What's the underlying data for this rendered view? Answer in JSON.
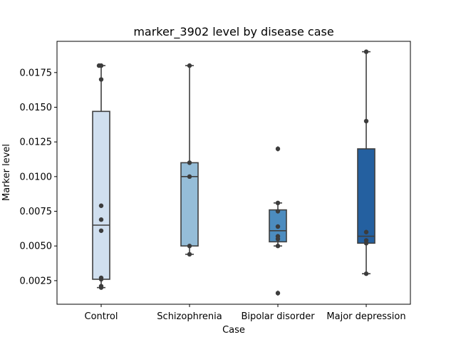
{
  "chart_data": {
    "type": "box",
    "title": "marker_3902 level by disease case",
    "xlabel": "Case",
    "ylabel": "Marker level",
    "ylim": [
      0.0008,
      0.01975
    ],
    "yticks": [
      "0.0025",
      "0.0050",
      "0.0075",
      "0.0100",
      "0.0125",
      "0.0150",
      "0.0175"
    ],
    "categories": [
      "Control",
      "Schizophrenia",
      "Bipolar disorder",
      "Major depression"
    ],
    "grid": false,
    "legend": "none",
    "boxes": [
      {
        "name": "Control",
        "color": "#d0dfef",
        "whisker_low": 0.002,
        "q1": 0.0026,
        "median": 0.0065,
        "q3": 0.0147,
        "whisker_high": 0.018,
        "outliers": []
      },
      {
        "name": "Schizophrenia",
        "color": "#95bdd8",
        "whisker_low": 0.0044,
        "q1": 0.005,
        "median": 0.01,
        "q3": 0.011,
        "whisker_high": 0.018,
        "outliers": []
      },
      {
        "name": "Bipolar disorder",
        "color": "#4c8cbf",
        "whisker_low": 0.005,
        "q1": 0.0053,
        "median": 0.0061,
        "q3": 0.0076,
        "whisker_high": 0.0081,
        "outliers": [
          0.012,
          0.0016
        ]
      },
      {
        "name": "Major depression",
        "color": "#2460a0",
        "whisker_low": 0.003,
        "q1": 0.0052,
        "median": 0.0057,
        "q3": 0.012,
        "whisker_high": 0.019,
        "outliers": []
      }
    ],
    "points": [
      [
        0.018,
        0.018,
        0.017,
        0.0079,
        0.0069,
        0.0061,
        0.0027,
        0.0026,
        0.0021,
        0.002
      ],
      [
        0.018,
        0.011,
        0.01,
        0.005,
        0.0044
      ],
      [
        0.012,
        0.0081,
        0.0075,
        0.0064,
        0.0057,
        0.0055,
        0.005,
        0.0016
      ],
      [
        0.019,
        0.014,
        0.006,
        0.0054,
        0.0052,
        0.003
      ]
    ]
  }
}
